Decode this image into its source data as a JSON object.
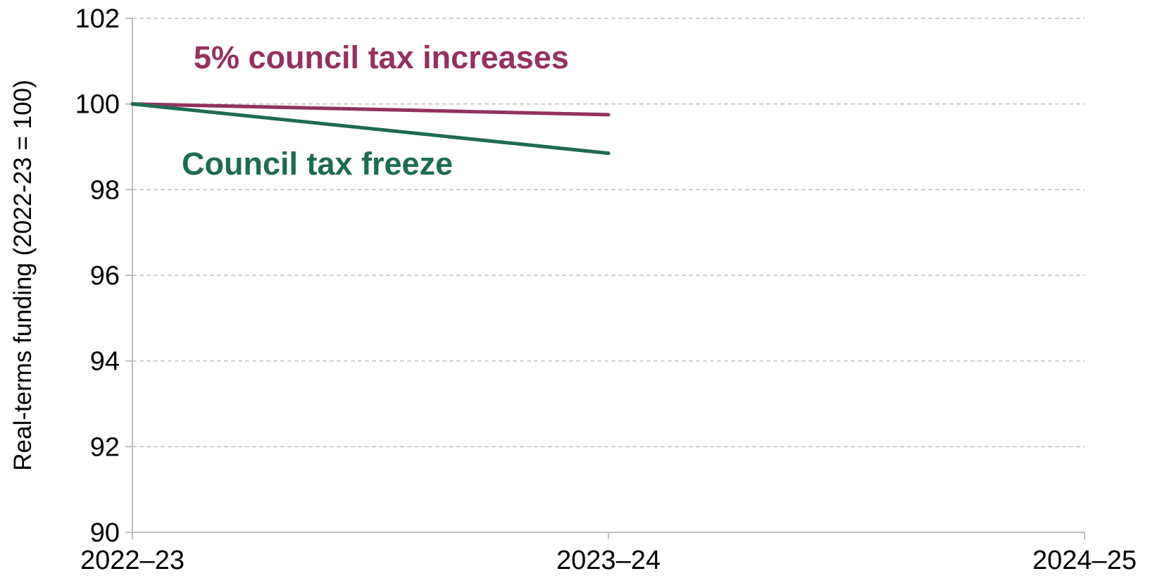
{
  "chart_data": {
    "type": "line",
    "x_categories": [
      "2022–23",
      "2023–24",
      "2024–25"
    ],
    "ylabel": "Real-terms funding (2022-23 = 100)",
    "ylim": [
      90,
      102
    ],
    "yticks": [
      90,
      92,
      94,
      96,
      98,
      100,
      102
    ],
    "grid": "horizontal dashed",
    "series": [
      {
        "name": "5% council tax increases",
        "color": "#93315f",
        "values": [
          100.0,
          99.75,
          null
        ]
      },
      {
        "name": "Council tax freeze",
        "color": "#1e6b52",
        "values": [
          100.0,
          98.85,
          null
        ]
      }
    ]
  }
}
